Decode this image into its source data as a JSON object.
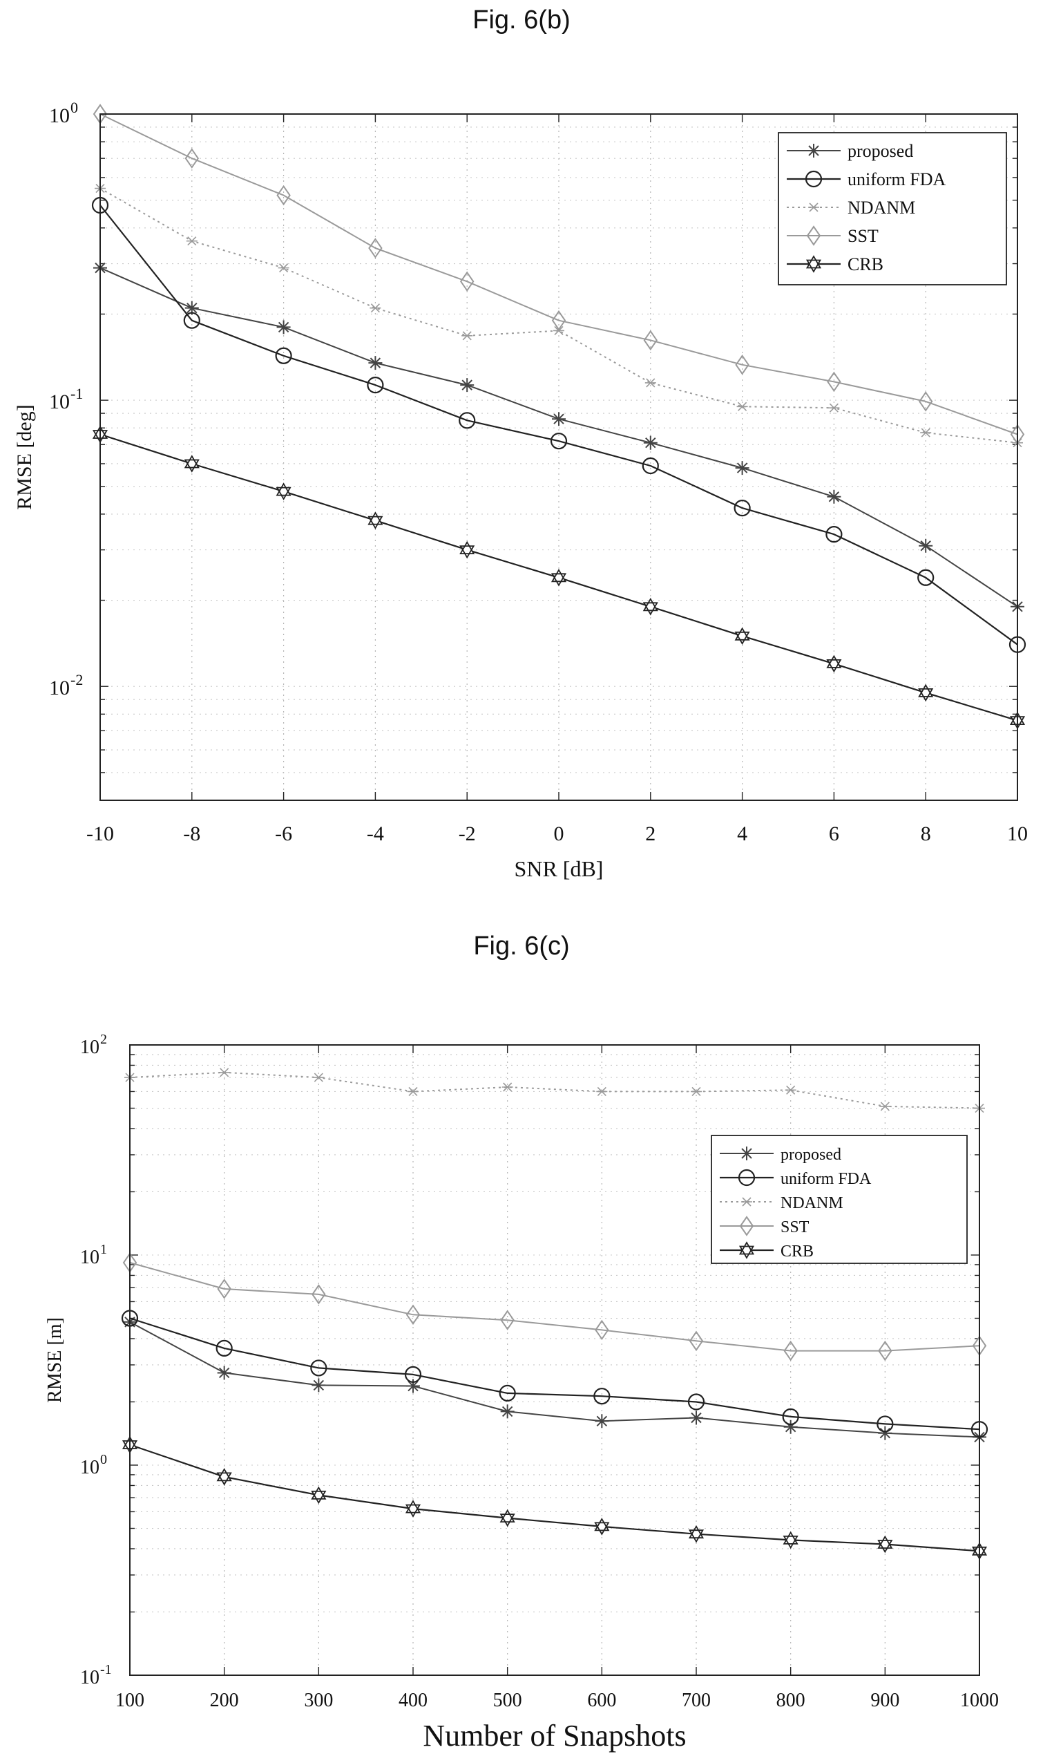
{
  "chart_data": [
    {
      "type": "line",
      "title": "Fig. 6(b)",
      "xlabel": "SNR [dB]",
      "ylabel": "RMSE [deg]",
      "yscale": "log",
      "xlim": [
        -10,
        10
      ],
      "ylim": [
        0.004,
        1
      ],
      "grid": true,
      "legend_position": "top-right",
      "x_ticks": [
        "-10",
        "-8",
        "-6",
        "-4",
        "-2",
        "0",
        "2",
        "4",
        "6",
        "8",
        "10"
      ],
      "y_ticks": [
        {
          "value": 1,
          "base": "10",
          "exp": "0"
        },
        {
          "value": 0.1,
          "base": "10",
          "exp": "-1"
        },
        {
          "value": 0.01,
          "base": "10",
          "exp": "-2"
        }
      ],
      "x": [
        -10,
        -8,
        -6,
        -4,
        -2,
        0,
        2,
        4,
        6,
        8,
        10
      ],
      "series": [
        {
          "name": "proposed",
          "color": "#444444",
          "marker": "asterisk",
          "dash": "solid",
          "width": 2,
          "values": [
            0.29,
            0.21,
            0.18,
            0.135,
            0.113,
            0.086,
            0.071,
            0.058,
            0.046,
            0.031,
            0.019
          ]
        },
        {
          "name": "uniform FDA",
          "color": "#222222",
          "marker": "circle",
          "dash": "solid",
          "width": 2.2,
          "values": [
            0.48,
            0.19,
            0.143,
            0.113,
            0.085,
            0.072,
            0.059,
            0.042,
            0.034,
            0.024,
            0.014
          ]
        },
        {
          "name": "NDANM",
          "color": "#9a9a9a",
          "marker": "x",
          "dash": "dotted",
          "width": 2,
          "values": [
            0.55,
            0.36,
            0.29,
            0.21,
            0.168,
            0.175,
            0.115,
            0.095,
            0.094,
            0.077,
            0.071
          ]
        },
        {
          "name": "SST",
          "color": "#9a9a9a",
          "marker": "diamond",
          "dash": "solid",
          "width": 2,
          "values": [
            1.0,
            0.7,
            0.52,
            0.34,
            0.26,
            0.19,
            0.162,
            0.133,
            0.116,
            0.099,
            0.076
          ]
        },
        {
          "name": "CRB",
          "color": "#222222",
          "marker": "hexagram",
          "dash": "solid",
          "width": 2.2,
          "values": [
            0.076,
            0.06,
            0.048,
            0.038,
            0.03,
            0.024,
            0.019,
            0.015,
            0.012,
            0.0095,
            0.0076
          ]
        }
      ]
    },
    {
      "type": "line",
      "title": "Fig. 6(c)",
      "xlabel": "Number of Snapshots",
      "ylabel": "RMSE [m]",
      "yscale": "log",
      "xlim": [
        100,
        1000
      ],
      "ylim": [
        0.1,
        100
      ],
      "grid": true,
      "legend_position": "top-right",
      "x_ticks": [
        "100",
        "200",
        "300",
        "400",
        "500",
        "600",
        "700",
        "800",
        "900",
        "1000"
      ],
      "y_ticks": [
        {
          "value": 100,
          "base": "10",
          "exp": "2"
        },
        {
          "value": 10,
          "base": "10",
          "exp": "1"
        },
        {
          "value": 1,
          "base": "10",
          "exp": "0"
        },
        {
          "value": 0.1,
          "base": "10",
          "exp": "-1"
        }
      ],
      "x": [
        100,
        200,
        300,
        400,
        500,
        600,
        700,
        800,
        900,
        1000
      ],
      "series": [
        {
          "name": "proposed",
          "color": "#444444",
          "marker": "asterisk",
          "dash": "solid",
          "width": 2,
          "values": [
            4.8,
            2.75,
            2.4,
            2.38,
            1.8,
            1.62,
            1.68,
            1.52,
            1.42,
            1.36
          ]
        },
        {
          "name": "uniform FDA",
          "color": "#222222",
          "marker": "circle",
          "dash": "solid",
          "width": 2.2,
          "values": [
            5.0,
            3.6,
            2.9,
            2.7,
            2.2,
            2.13,
            2.0,
            1.7,
            1.57,
            1.48
          ]
        },
        {
          "name": "NDANM",
          "color": "#9a9a9a",
          "marker": "x",
          "dash": "dotted",
          "width": 2,
          "values": [
            70,
            74,
            70,
            60,
            63,
            60,
            60,
            61,
            51,
            50
          ]
        },
        {
          "name": "SST",
          "color": "#9a9a9a",
          "marker": "diamond",
          "dash": "solid",
          "width": 2,
          "values": [
            9.2,
            6.9,
            6.5,
            5.2,
            4.9,
            4.4,
            3.9,
            3.5,
            3.5,
            3.7
          ]
        },
        {
          "name": "CRB",
          "color": "#222222",
          "marker": "hexagram",
          "dash": "solid",
          "width": 2.2,
          "values": [
            1.25,
            0.88,
            0.72,
            0.62,
            0.56,
            0.51,
            0.47,
            0.44,
            0.42,
            0.39
          ]
        }
      ]
    }
  ]
}
